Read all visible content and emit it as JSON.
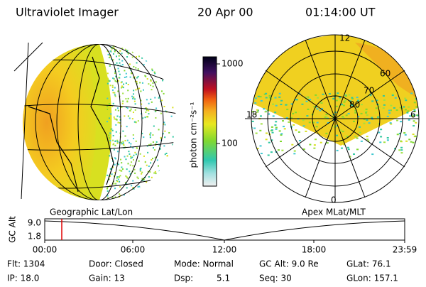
{
  "header": {
    "title": "Ultraviolet Imager",
    "date": "20 Apr 00",
    "time": "01:14:00 UT"
  },
  "colorbar": {
    "label": "photon cm⁻²s⁻¹",
    "ticks": [
      "1000",
      "100"
    ]
  },
  "polar": {
    "mlt": [
      "12",
      "18",
      "6",
      "0"
    ],
    "mlat": [
      "60",
      "70",
      "80"
    ]
  },
  "timeline": {
    "left_title": "Geographic Lat/Lon",
    "right_title": "Apex MLat/MLT",
    "y_label": "GC Alt",
    "y_ticks": [
      "9.0",
      "1.8"
    ],
    "x_ticks": [
      "00:00",
      "06:00",
      "12:00",
      "18:00",
      "23:59"
    ]
  },
  "info": {
    "row1": [
      "Flt: 1304",
      "Door: Closed",
      "Mode: Normal",
      "GC Alt: 9.0 Re",
      "GLat: 76.1"
    ],
    "row2": [
      "IP: 18.0",
      "Gain: 13",
      "Dsp:",
      "5.1",
      "Seq: 30",
      "GLon: 157.1"
    ]
  }
}
